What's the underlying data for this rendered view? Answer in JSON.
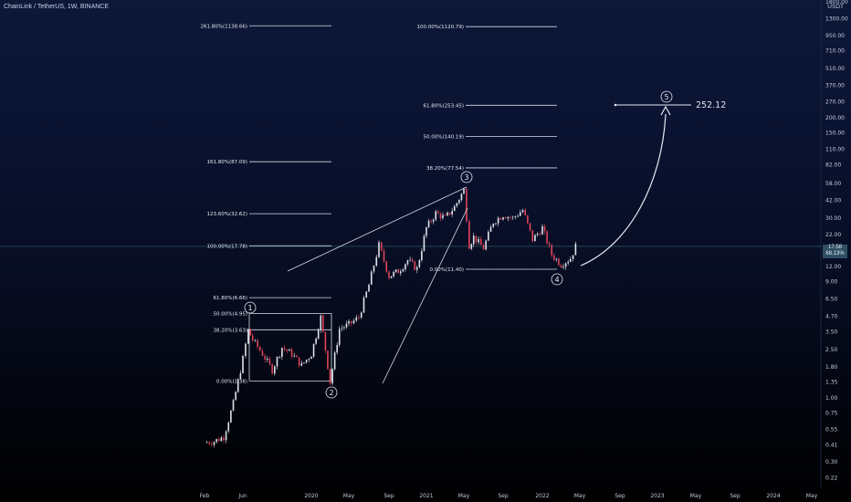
{
  "header": {
    "title": "ChainLink / TetherUS, 1W, BINANCE",
    "unit": "USDT"
  },
  "price_tag": {
    "line1": "17.58",
    "line2": "68.13%"
  },
  "chart_data": {
    "type": "candlestick",
    "symbol": "LINKUSDT",
    "interval": "1W",
    "exchange": "BINANCE",
    "y_scale": "log",
    "y_ticks": [
      0.22,
      0.3,
      0.41,
      0.55,
      0.75,
      1.0,
      1.35,
      1.8,
      2.5,
      3.5,
      4.7,
      6.5,
      9.0,
      12.0,
      16.0,
      22.0,
      30.0,
      42.0,
      58.0,
      82.0,
      110.0,
      150.0,
      200.0,
      270.0,
      370.0,
      510.0,
      710.0,
      950.0,
      1300.0,
      1800.0
    ],
    "y_tick_labels": [
      "0.22",
      "0.30",
      "0.41",
      "0.55",
      "0.75",
      "1.00",
      "1.35",
      "1.80",
      "2.50",
      "3.50",
      "4.70",
      "6.50",
      "9.00",
      "12.00",
      "16.00",
      "22.00",
      "30.00",
      "42.00",
      "58.00",
      "82.00",
      "110.00",
      "150.00",
      "200.00",
      "270.00",
      "370.00",
      "510.00",
      "710.00",
      "950.00",
      "1300.00",
      "1800.00"
    ],
    "x_tick_labels": [
      "Feb",
      "Jun",
      "2020",
      "May",
      "Sep",
      "2021",
      "May",
      "Sep",
      "2022",
      "May",
      "Sep",
      "2023",
      "May",
      "Sep",
      "2024",
      "May"
    ],
    "last_price": 17.58,
    "price_path": [
      [
        "2019-02",
        0.43
      ],
      [
        "2019-03",
        0.44
      ],
      [
        "2019-04",
        0.48
      ],
      [
        "2019-05",
        0.9
      ],
      [
        "2019-06",
        2.1
      ],
      [
        "2019-06",
        3.6
      ],
      [
        "2019-07",
        3.0
      ],
      [
        "2019-08",
        2.3
      ],
      [
        "2019-09",
        1.7
      ],
      [
        "2019-10",
        2.6
      ],
      [
        "2019-11",
        2.3
      ],
      [
        "2019-12",
        1.85
      ],
      [
        "2020-01",
        2.3
      ],
      [
        "2020-02",
        4.6
      ],
      [
        "2020-03",
        1.35
      ],
      [
        "2020-04",
        3.7
      ],
      [
        "2020-05",
        4.0
      ],
      [
        "2020-06",
        4.6
      ],
      [
        "2020-07",
        8.5
      ],
      [
        "2020-08",
        18.0
      ],
      [
        "2020-09",
        10.0
      ],
      [
        "2020-10",
        11.0
      ],
      [
        "2020-11",
        13.5
      ],
      [
        "2020-12",
        11.5
      ],
      [
        "2021-01",
        25.0
      ],
      [
        "2021-02",
        33.0
      ],
      [
        "2021-03",
        30.0
      ],
      [
        "2021-04",
        37.0
      ],
      [
        "2021-05",
        51.0
      ],
      [
        "2021-05",
        18.0
      ],
      [
        "2021-06",
        21.0
      ],
      [
        "2021-07",
        17.0
      ],
      [
        "2021-08",
        28.0
      ],
      [
        "2021-09",
        32.0
      ],
      [
        "2021-10",
        30.0
      ],
      [
        "2021-11",
        35.0
      ],
      [
        "2021-12",
        20.0
      ],
      [
        "2022-01",
        25.0
      ],
      [
        "2022-02",
        15.0
      ],
      [
        "2022-03",
        12.5
      ],
      [
        "2022-04",
        14.0
      ],
      [
        "2022-04",
        17.58
      ]
    ],
    "fib_sets": [
      {
        "anchor": "cycle 1 (0.00 = 1.38)",
        "levels": [
          {
            "label": "261.80%(1138.66)",
            "ratio": 2.618,
            "value": 1138.66
          },
          {
            "label": "161.80%(87.09)",
            "ratio": 1.618,
            "value": 87.09
          },
          {
            "label": "123.60%(32.62)",
            "ratio": 1.236,
            "value": 32.62
          },
          {
            "label": "100.00%(17.78)",
            "ratio": 1.0,
            "value": 17.78
          },
          {
            "label": "61.80%(6.66)",
            "ratio": 0.618,
            "value": 6.66
          },
          {
            "label": "50.00%(4.95)",
            "ratio": 0.5,
            "value": 4.95
          },
          {
            "label": "38.20%(3.63)",
            "ratio": 0.382,
            "value": 3.63
          },
          {
            "label": "0.00%(1.38)",
            "ratio": 0.0,
            "value": 1.38
          }
        ]
      },
      {
        "anchor": "cycle 2 (0.00 = 11.40)",
        "levels": [
          {
            "label": "100.00%(1120.79)",
            "ratio": 1.0,
            "value": 1120.79
          },
          {
            "label": "61.80%(253.45)",
            "ratio": 0.618,
            "value": 253.45
          },
          {
            "label": "50.00%(140.19)",
            "ratio": 0.5,
            "value": 140.19
          },
          {
            "label": "38.20%(77.54)",
            "ratio": 0.382,
            "value": 77.54
          },
          {
            "label": "0.00%(11.40)",
            "ratio": 0.0,
            "value": 11.4
          }
        ]
      }
    ],
    "waves": [
      {
        "label": "1",
        "price": 4.95
      },
      {
        "label": "2",
        "price": 1.38
      },
      {
        "label": "3",
        "price": 52.0
      },
      {
        "label": "4",
        "price": 11.4
      },
      {
        "label": "5",
        "price": 252.12
      }
    ],
    "target_value": "252.12",
    "grid": false,
    "legend": "none"
  }
}
